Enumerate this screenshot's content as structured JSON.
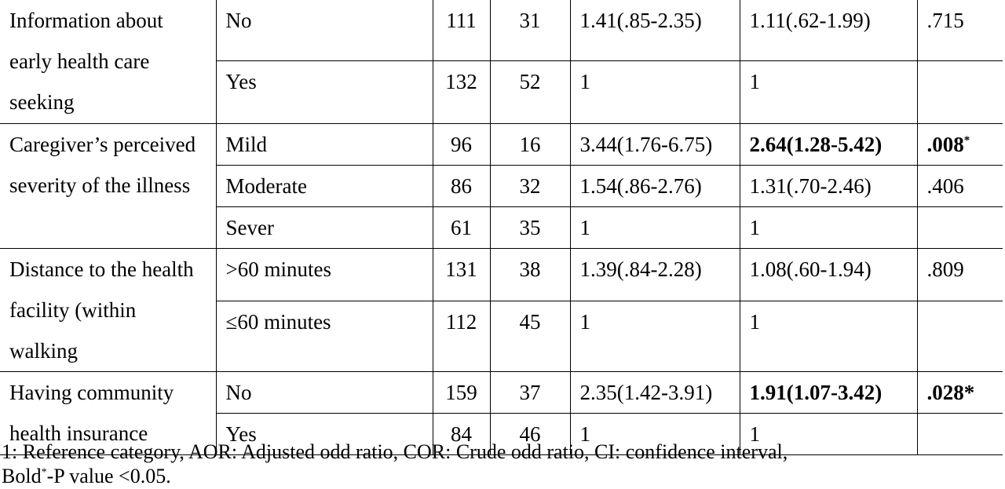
{
  "table": {
    "groups": [
      {
        "variable": "Information about early health care seeking",
        "rows": [
          {
            "category": "No",
            "n1": "111",
            "n2": "31",
            "cor": "1.41(.85-2.35)",
            "aor": "1.11(.62-1.99)",
            "p": ".715",
            "bold": false,
            "sup": ""
          },
          {
            "category": "Yes",
            "n1": "132",
            "n2": "52",
            "cor": "1",
            "aor": "1",
            "p": "",
            "bold": false,
            "sup": ""
          }
        ]
      },
      {
        "variable": "Caregiver’s perceived severity of the illness",
        "rows": [
          {
            "category": "Mild",
            "n1": "96",
            "n2": "16",
            "cor": "3.44(1.76-6.75)",
            "aor": "2.64(1.28-5.42)",
            "p": ".008",
            "bold": true,
            "sup": "*"
          },
          {
            "category": "Moderate",
            "n1": "86",
            "n2": "32",
            "cor": "1.54(.86-2.76)",
            "aor": "1.31(.70-2.46)",
            "p": ".406",
            "bold": false,
            "sup": ""
          },
          {
            "category": "Sever",
            "n1": "61",
            "n2": "35",
            "cor": "1",
            "aor": "1",
            "p": "",
            "bold": false,
            "sup": ""
          }
        ]
      },
      {
        "variable": "Distance to the health facility (within walking",
        "rows": [
          {
            "category": ">60 minutes",
            "n1": "131",
            "n2": "38",
            "cor": "1.39(.84-2.28)",
            "aor": "1.08(.60-1.94)",
            "p": ".809",
            "bold": false,
            "sup": ""
          },
          {
            "category": "≤60 minutes",
            "n1": "112",
            "n2": "45",
            "cor": "1",
            "aor": "1",
            "p": "",
            "bold": false,
            "sup": ""
          }
        ]
      },
      {
        "variable": "Having community health insurance",
        "rows": [
          {
            "category": "No",
            "n1": "159",
            "n2": "37",
            "cor": "2.35(1.42-3.91)",
            "aor": "1.91(1.07-3.42)",
            "p": ".028*",
            "bold": true,
            "sup": ""
          },
          {
            "category": "Yes",
            "n1": "84",
            "n2": "46",
            "cor": "1",
            "aor": "1",
            "p": "",
            "bold": false,
            "sup": ""
          }
        ]
      }
    ]
  },
  "footnote": {
    "line1": "1: Reference category, AOR: Adjusted odd ratio, COR: Crude odd ratio, CI: confidence interval,",
    "line2_prefix": "Bold",
    "line2_sup": "*",
    "line2_suffix": "-P value <0.05."
  }
}
